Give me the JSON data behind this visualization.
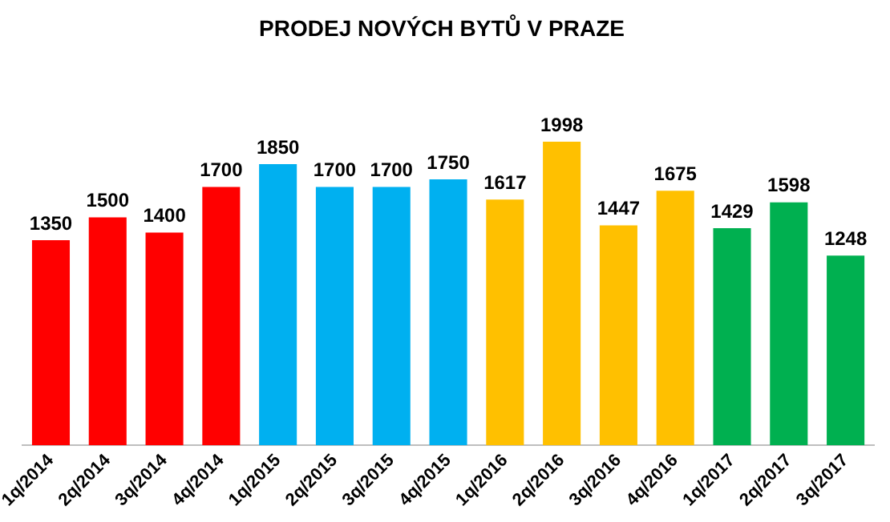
{
  "chart_data": {
    "type": "bar",
    "title": "PRODEJ NOVÝCH BYTŮ V PRAZE",
    "categories": [
      "1q/2014",
      "2q/2014",
      "3q/2014",
      "4q/2014",
      "1q/2015",
      "2q/2015",
      "3q/2015",
      "4q/2015",
      "1q/2016",
      "2q/2016",
      "3q/2016",
      "4q/2016",
      "1q/2017",
      "2q/2017",
      "3q/2017"
    ],
    "values": [
      1350,
      1500,
      1400,
      1700,
      1850,
      1700,
      1700,
      1750,
      1617,
      1998,
      1447,
      1675,
      1429,
      1598,
      1248
    ],
    "colors": [
      "#ff0000",
      "#ff0000",
      "#ff0000",
      "#ff0000",
      "#00b0f0",
      "#00b0f0",
      "#00b0f0",
      "#00b0f0",
      "#ffc000",
      "#ffc000",
      "#ffc000",
      "#ffc000",
      "#00b050",
      "#00b050",
      "#00b050"
    ],
    "data_labels": true,
    "grid": false,
    "legend": false
  }
}
